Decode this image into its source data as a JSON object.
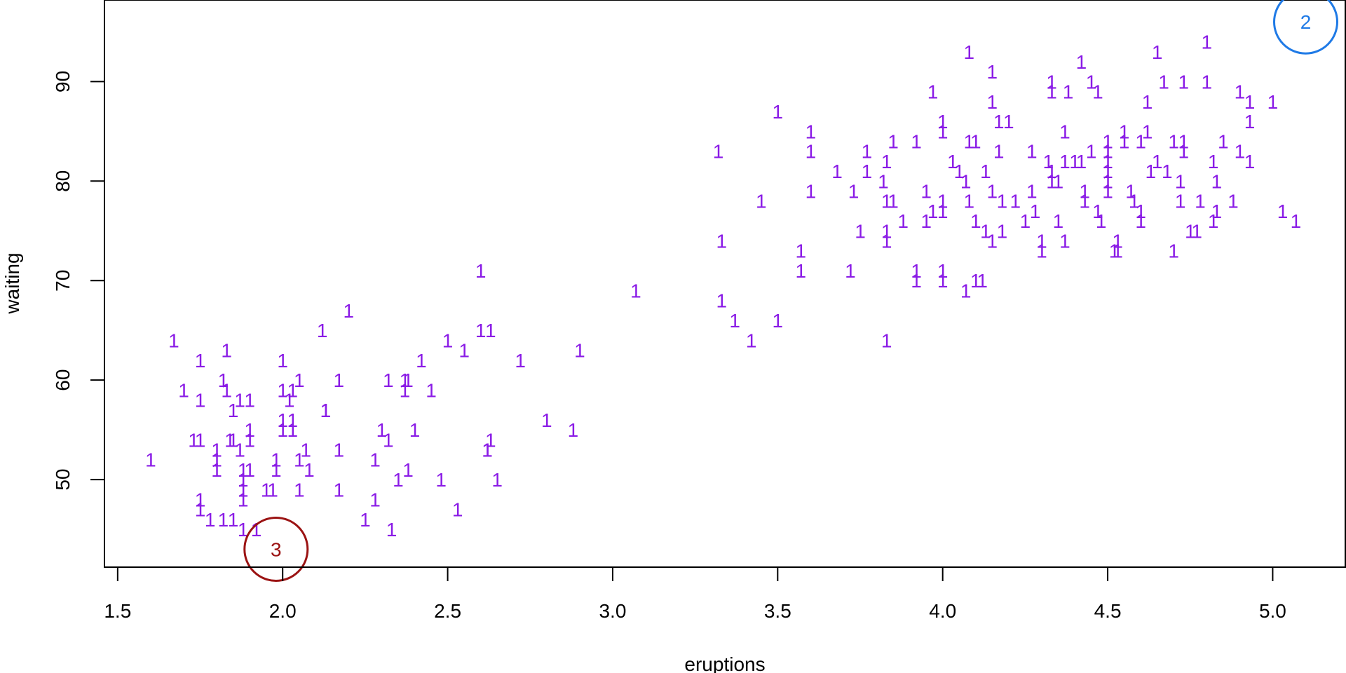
{
  "chart_data": {
    "type": "scatter",
    "title": "",
    "xlabel": "eruptions",
    "ylabel": "waiting",
    "xlim": [
      1.46,
      5.22
    ],
    "ylim": [
      41.2,
      98.2
    ],
    "xticks": [
      1.5,
      2.0,
      2.5,
      3.0,
      3.5,
      4.0,
      4.5,
      5.0
    ],
    "xtick_labels": [
      "1.5",
      "2.0",
      "2.5",
      "3.0",
      "3.5",
      "4.0",
      "4.5",
      "5.0"
    ],
    "yticks": [
      50,
      60,
      70,
      80,
      90
    ],
    "ytick_labels": [
      "50",
      "60",
      "70",
      "80",
      "90"
    ],
    "grid": false,
    "marker_label": "1",
    "point_color": "#8a1be6",
    "points": [
      [
        1.6,
        52
      ],
      [
        1.67,
        64
      ],
      [
        1.7,
        59
      ],
      [
        1.73,
        54
      ],
      [
        1.75,
        54
      ],
      [
        1.75,
        48
      ],
      [
        1.75,
        47
      ],
      [
        1.75,
        62
      ],
      [
        1.75,
        58
      ],
      [
        1.78,
        46
      ],
      [
        1.8,
        53
      ],
      [
        1.8,
        51
      ],
      [
        1.8,
        52
      ],
      [
        1.82,
        46
      ],
      [
        1.82,
        60
      ],
      [
        1.83,
        59
      ],
      [
        1.83,
        63
      ],
      [
        1.84,
        54
      ],
      [
        1.85,
        57
      ],
      [
        1.85,
        46
      ],
      [
        1.85,
        54
      ],
      [
        1.87,
        58
      ],
      [
        1.87,
        53
      ],
      [
        1.88,
        51
      ],
      [
        1.88,
        50
      ],
      [
        1.88,
        49
      ],
      [
        1.88,
        48
      ],
      [
        1.88,
        45
      ],
      [
        1.9,
        58
      ],
      [
        1.9,
        55
      ],
      [
        1.9,
        54
      ],
      [
        1.9,
        51
      ],
      [
        1.92,
        45
      ],
      [
        1.95,
        49
      ],
      [
        1.97,
        49
      ],
      [
        1.98,
        52
      ],
      [
        1.98,
        51
      ],
      [
        2.0,
        62
      ],
      [
        2.0,
        56
      ],
      [
        2.0,
        55
      ],
      [
        2.0,
        59
      ],
      [
        2.02,
        58
      ],
      [
        2.03,
        59
      ],
      [
        2.03,
        55
      ],
      [
        2.03,
        56
      ],
      [
        2.05,
        60
      ],
      [
        2.05,
        52
      ],
      [
        2.05,
        49
      ],
      [
        2.07,
        53
      ],
      [
        2.08,
        51
      ],
      [
        2.12,
        65
      ],
      [
        2.13,
        57
      ],
      [
        2.13,
        57
      ],
      [
        2.17,
        60
      ],
      [
        2.17,
        53
      ],
      [
        2.17,
        49
      ],
      [
        2.2,
        67
      ],
      [
        2.25,
        46
      ],
      [
        2.28,
        52
      ],
      [
        2.28,
        48
      ],
      [
        2.3,
        55
      ],
      [
        2.32,
        60
      ],
      [
        2.32,
        54
      ],
      [
        2.33,
        45
      ],
      [
        2.35,
        50
      ],
      [
        2.37,
        60
      ],
      [
        2.37,
        59
      ],
      [
        2.38,
        60
      ],
      [
        2.38,
        51
      ],
      [
        2.4,
        55
      ],
      [
        2.42,
        62
      ],
      [
        2.45,
        59
      ],
      [
        2.48,
        50
      ],
      [
        2.5,
        64
      ],
      [
        2.53,
        47
      ],
      [
        2.55,
        63
      ],
      [
        2.6,
        71
      ],
      [
        2.6,
        65
      ],
      [
        2.62,
        53
      ],
      [
        2.63,
        54
      ],
      [
        2.65,
        50
      ],
      [
        2.72,
        62
      ],
      [
        2.63,
        65
      ],
      [
        2.62,
        53
      ],
      [
        2.8,
        56
      ],
      [
        2.88,
        55
      ],
      [
        2.9,
        63
      ],
      [
        3.07,
        69
      ],
      [
        3.32,
        83
      ],
      [
        3.33,
        68
      ],
      [
        3.33,
        74
      ],
      [
        3.37,
        66
      ],
      [
        3.42,
        64
      ],
      [
        3.45,
        78
      ],
      [
        3.5,
        66
      ],
      [
        3.5,
        87
      ],
      [
        3.57,
        73
      ],
      [
        3.57,
        71
      ],
      [
        3.6,
        79
      ],
      [
        3.6,
        83
      ],
      [
        3.6,
        85
      ],
      [
        3.68,
        81
      ],
      [
        3.72,
        71
      ],
      [
        3.73,
        79
      ],
      [
        3.75,
        75
      ],
      [
        3.77,
        83
      ],
      [
        3.77,
        81
      ],
      [
        3.82,
        80
      ],
      [
        3.83,
        78
      ],
      [
        3.83,
        75
      ],
      [
        3.83,
        74
      ],
      [
        3.83,
        82
      ],
      [
        3.83,
        64
      ],
      [
        3.85,
        78
      ],
      [
        3.85,
        84
      ],
      [
        3.88,
        76
      ],
      [
        3.92,
        84
      ],
      [
        3.92,
        71
      ],
      [
        3.92,
        70
      ],
      [
        3.95,
        79
      ],
      [
        3.95,
        76
      ],
      [
        3.97,
        89
      ],
      [
        3.97,
        77
      ],
      [
        4.0,
        86
      ],
      [
        4.0,
        85
      ],
      [
        4.0,
        78
      ],
      [
        4.0,
        77
      ],
      [
        4.0,
        71
      ],
      [
        4.0,
        70
      ],
      [
        4.03,
        82
      ],
      [
        4.05,
        81
      ],
      [
        4.07,
        80
      ],
      [
        4.07,
        69
      ],
      [
        4.08,
        84
      ],
      [
        4.08,
        93
      ],
      [
        4.08,
        78
      ],
      [
        4.1,
        84
      ],
      [
        4.1,
        76
      ],
      [
        4.1,
        70
      ],
      [
        4.12,
        70
      ],
      [
        4.13,
        75
      ],
      [
        4.13,
        81
      ],
      [
        4.15,
        74
      ],
      [
        4.15,
        91
      ],
      [
        4.15,
        88
      ],
      [
        4.15,
        79
      ],
      [
        4.17,
        86
      ],
      [
        4.17,
        83
      ],
      [
        4.18,
        78
      ],
      [
        4.18,
        75
      ],
      [
        4.2,
        86
      ],
      [
        4.22,
        78
      ],
      [
        4.25,
        76
      ],
      [
        4.27,
        83
      ],
      [
        4.27,
        79
      ],
      [
        4.28,
        77
      ],
      [
        4.3,
        74
      ],
      [
        4.3,
        73
      ],
      [
        4.32,
        82
      ],
      [
        4.33,
        81
      ],
      [
        4.33,
        80
      ],
      [
        4.33,
        90
      ],
      [
        4.33,
        89
      ],
      [
        4.35,
        76
      ],
      [
        4.35,
        80
      ],
      [
        4.37,
        82
      ],
      [
        4.37,
        85
      ],
      [
        4.37,
        74
      ],
      [
        4.38,
        89
      ],
      [
        4.4,
        82
      ],
      [
        4.42,
        92
      ],
      [
        4.42,
        82
      ],
      [
        4.43,
        79
      ],
      [
        4.43,
        78
      ],
      [
        4.45,
        90
      ],
      [
        4.45,
        83
      ],
      [
        4.47,
        89
      ],
      [
        4.47,
        77
      ],
      [
        4.48,
        76
      ],
      [
        4.5,
        80
      ],
      [
        4.5,
        83
      ],
      [
        4.5,
        82
      ],
      [
        4.5,
        81
      ],
      [
        4.5,
        79
      ],
      [
        4.5,
        84
      ],
      [
        4.52,
        73
      ],
      [
        4.53,
        73
      ],
      [
        4.53,
        74
      ],
      [
        4.55,
        85
      ],
      [
        4.55,
        84
      ],
      [
        4.57,
        79
      ],
      [
        4.58,
        78
      ],
      [
        4.6,
        77
      ],
      [
        4.6,
        76
      ],
      [
        4.6,
        84
      ],
      [
        4.62,
        85
      ],
      [
        4.62,
        88
      ],
      [
        4.63,
        81
      ],
      [
        4.65,
        93
      ],
      [
        4.65,
        82
      ],
      [
        4.67,
        90
      ],
      [
        4.68,
        81
      ],
      [
        4.7,
        84
      ],
      [
        4.7,
        73
      ],
      [
        4.72,
        80
      ],
      [
        4.72,
        78
      ],
      [
        4.73,
        90
      ],
      [
        4.73,
        83
      ],
      [
        4.73,
        84
      ],
      [
        4.75,
        75
      ],
      [
        4.77,
        75
      ],
      [
        4.78,
        78
      ],
      [
        4.8,
        90
      ],
      [
        4.8,
        94
      ],
      [
        4.82,
        76
      ],
      [
        4.82,
        82
      ],
      [
        4.83,
        80
      ],
      [
        4.83,
        77
      ],
      [
        4.85,
        84
      ],
      [
        4.88,
        78
      ],
      [
        4.9,
        89
      ],
      [
        4.9,
        83
      ],
      [
        4.93,
        82
      ],
      [
        4.93,
        88
      ],
      [
        4.93,
        86
      ],
      [
        5.0,
        88
      ],
      [
        5.03,
        77
      ],
      [
        5.07,
        76
      ]
    ],
    "annotations": [
      {
        "label": "2",
        "x": 5.1,
        "y": 96,
        "color": "#1f7ae6"
      },
      {
        "label": "3",
        "x": 1.98,
        "y": 43,
        "color": "#9b1313"
      }
    ]
  }
}
